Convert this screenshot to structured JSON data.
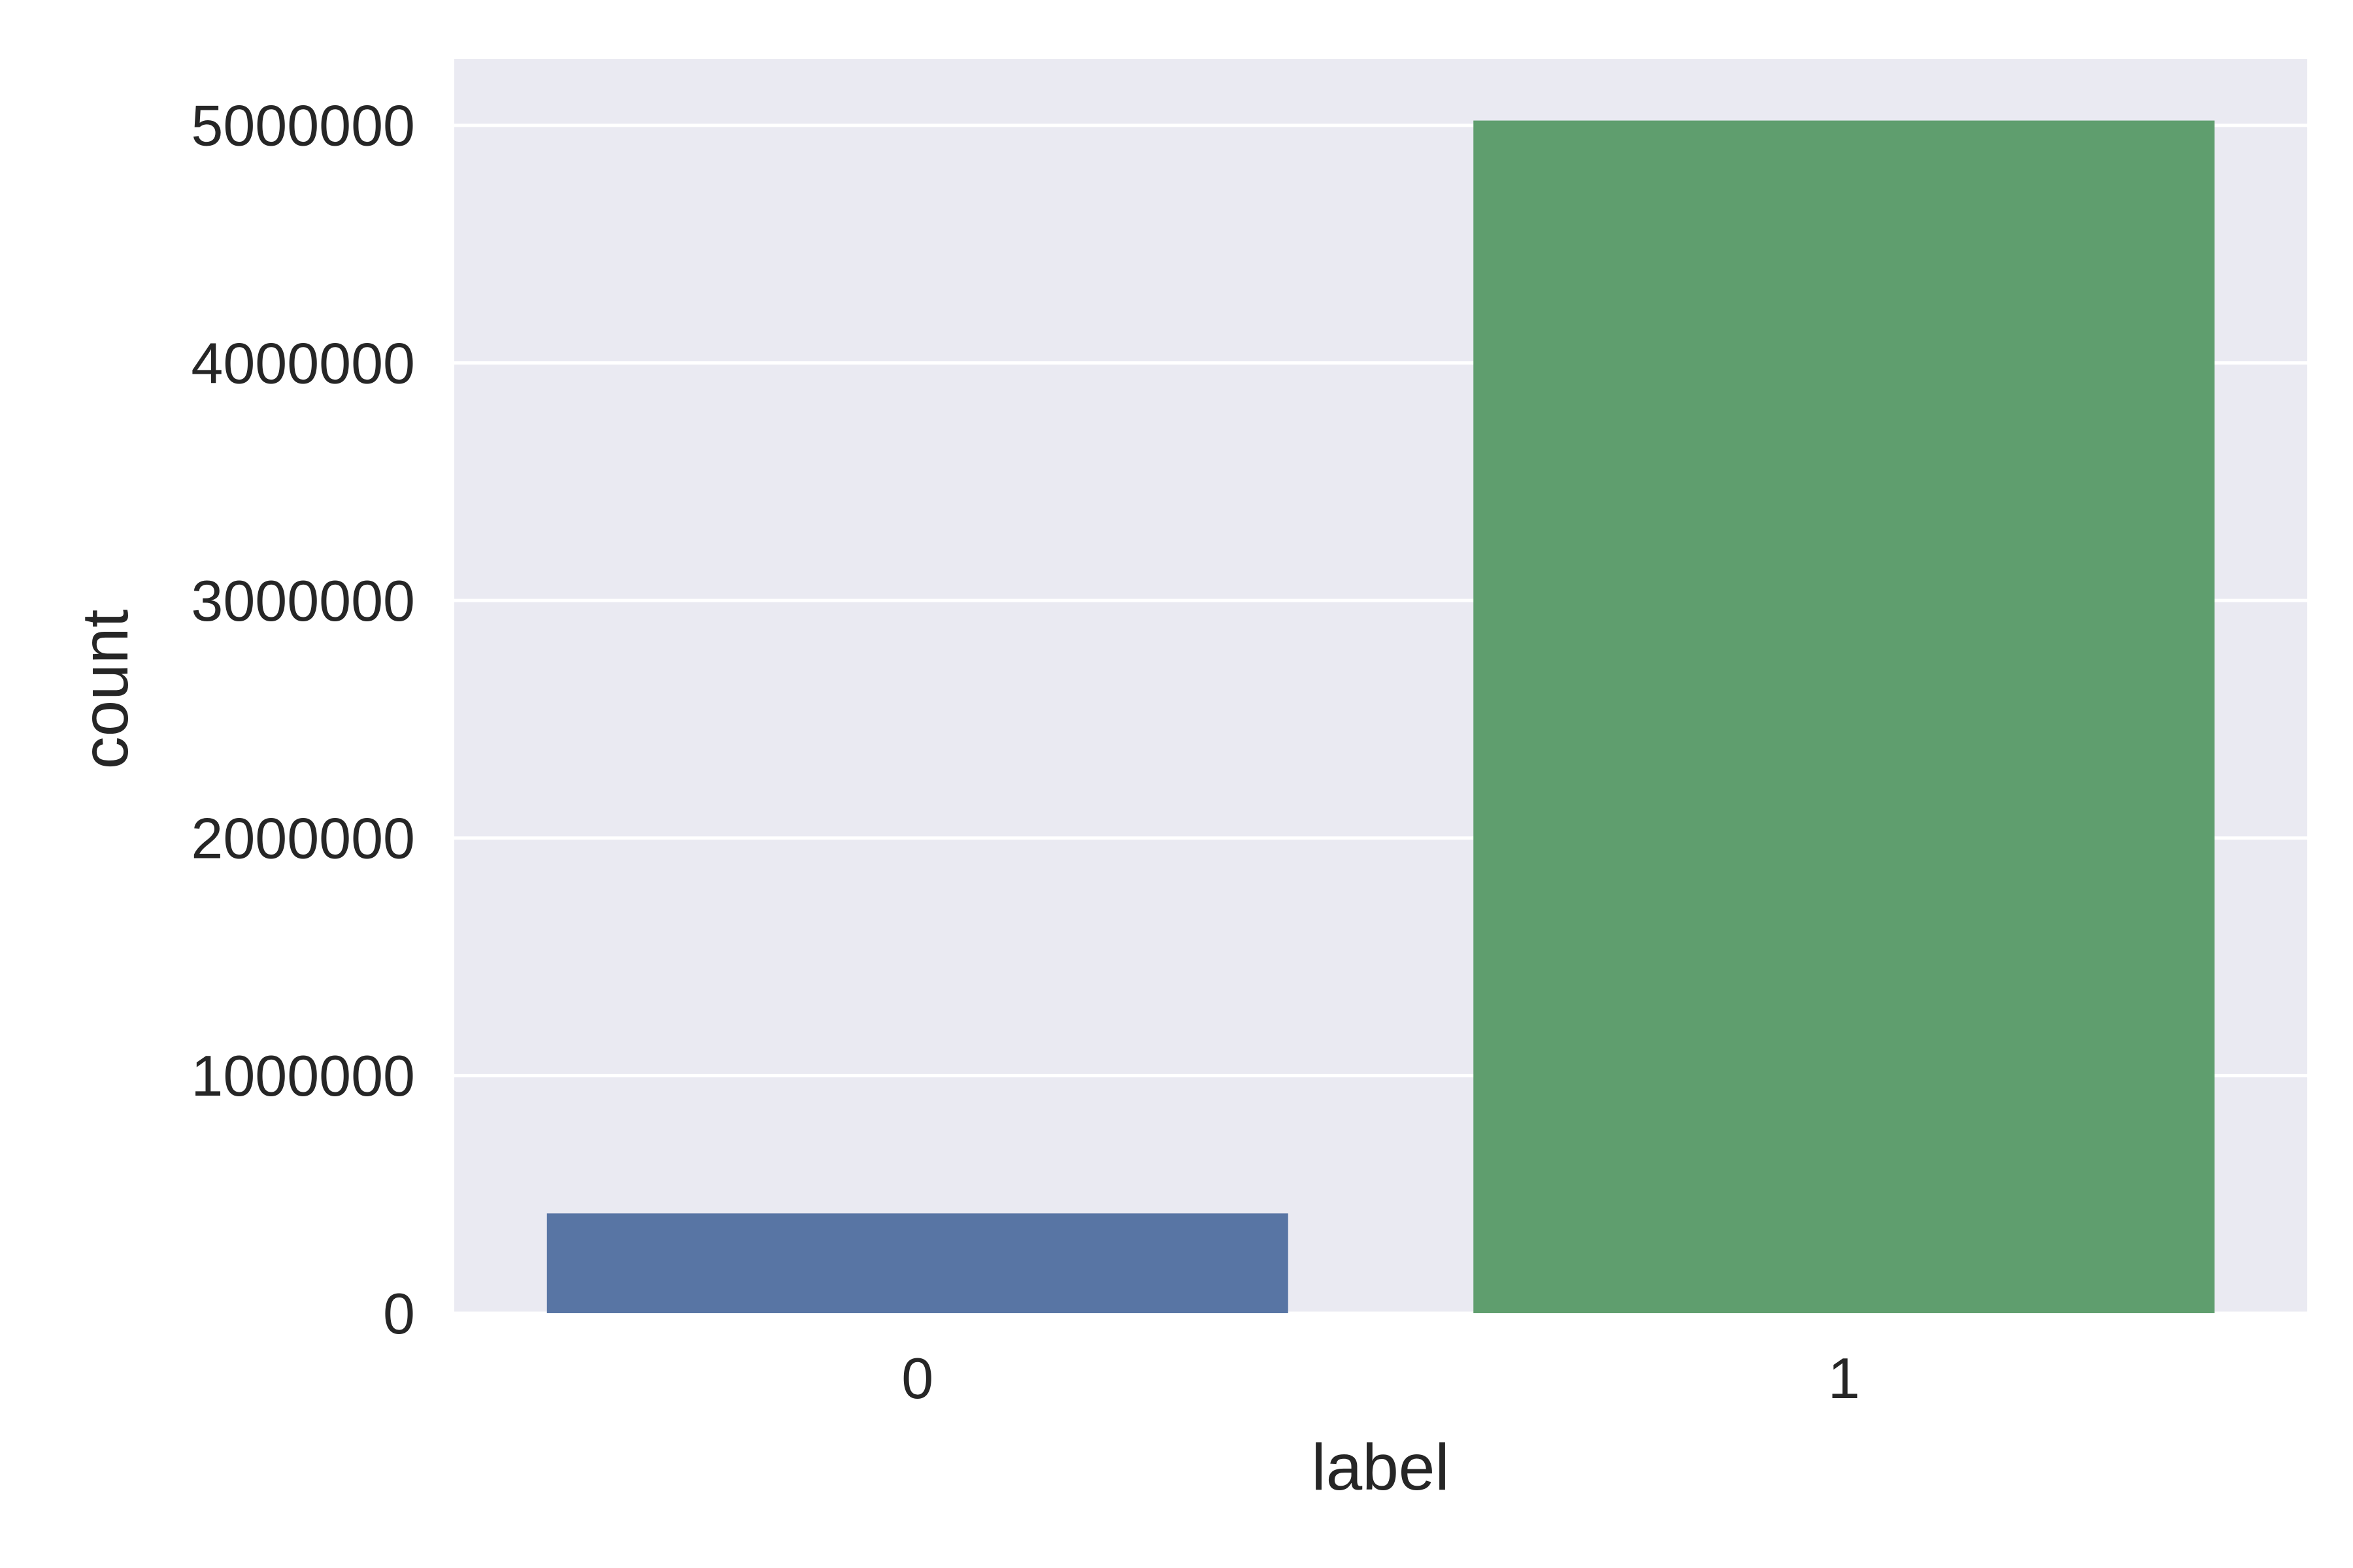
{
  "chart_data": {
    "type": "bar",
    "categories": [
      "0",
      "1"
    ],
    "values": [
      420000,
      5020000
    ],
    "bar_colors": [
      "#5875a4",
      "#5f9e6e"
    ],
    "xlabel": "label",
    "ylabel": "count",
    "ylim": [
      0,
      5280000
    ],
    "yticks": [
      0,
      1000000,
      2000000,
      3000000,
      4000000,
      5000000
    ],
    "ytick_labels": [
      "0",
      "1000000",
      "2000000",
      "3000000",
      "4000000",
      "5000000"
    ],
    "grid": true,
    "background_color": "#eaeaf2",
    "grid_color": "#ffffff"
  }
}
